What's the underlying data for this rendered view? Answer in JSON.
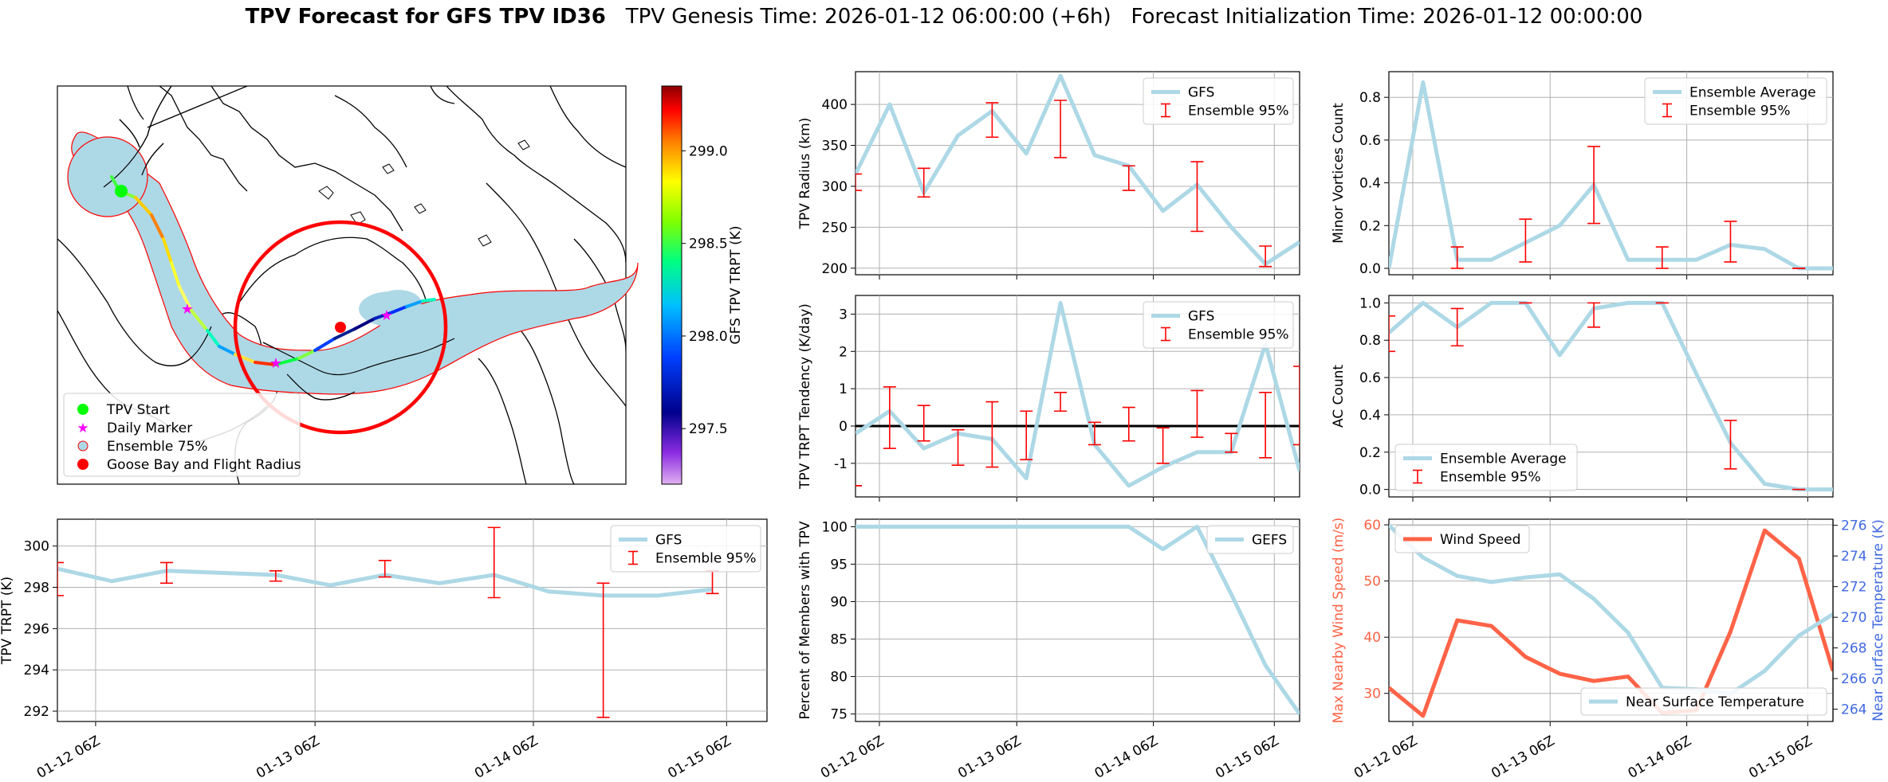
{
  "title": {
    "bold": "TPV Forecast for GFS TPV ID36",
    "genesis": "TPV Genesis Time: 2026-01-12 06:00:00 (+6h)",
    "init": "Forecast Initialization Time: 2026-01-12 00:00:00"
  },
  "colors": {
    "light_blue": "#add8e6",
    "red": "#ff0000",
    "tomato": "#ff6347",
    "royal_blue": "#4169e1",
    "green": "#00ff00",
    "magenta": "#ff00ff"
  },
  "time_ticks": [
    "01-12 06Z",
    "01-13 06Z",
    "01-14 06Z",
    "01-15 06Z"
  ],
  "map": {
    "legend": [
      "TPV Start",
      "Daily Marker",
      "Ensemble 75%",
      "Goose Bay and Flight Radius"
    ],
    "colorbar": {
      "label": "GFS TPV TRPT (K)",
      "ticks": [
        297.5,
        298.0,
        298.5,
        299.0
      ],
      "range": [
        297.2,
        299.35
      ]
    }
  },
  "chart_data": [
    {
      "id": "trpt",
      "type": "line",
      "ylabel": "TPV TRPT (K)",
      "ylim": [
        291.5,
        301.3
      ],
      "yticks": [
        292,
        294,
        296,
        298,
        300
      ],
      "x": [
        0,
        0.5,
        1,
        1.5,
        2,
        2.5,
        3,
        3.5,
        4,
        4.5,
        5,
        5.5,
        6
      ],
      "values": [
        298.9,
        298.3,
        298.8,
        298.7,
        298.6,
        298.1,
        298.6,
        298.2,
        298.6,
        297.8,
        297.6,
        297.6,
        297.9
      ],
      "series_name": "GFS",
      "errorbars": [
        {
          "x": 0,
          "lo": 297.6,
          "hi": 299.2
        },
        {
          "x": 1,
          "lo": 298.2,
          "hi": 299.2
        },
        {
          "x": 2,
          "lo": 298.3,
          "hi": 298.8
        },
        {
          "x": 3,
          "lo": 298.5,
          "hi": 299.3
        },
        {
          "x": 4,
          "lo": 297.5,
          "hi": 300.9
        },
        {
          "x": 5,
          "lo": 291.7,
          "hi": 298.2
        },
        {
          "x": 6,
          "lo": 297.7,
          "hi": 298.8
        }
      ],
      "legend": [
        "GFS",
        "Ensemble 95%"
      ]
    },
    {
      "id": "radius",
      "type": "line",
      "ylabel": "TPV Radius (km)",
      "ylim": [
        192,
        440
      ],
      "yticks": [
        200,
        250,
        300,
        350,
        400
      ],
      "x": [
        0,
        0.5,
        1,
        1.5,
        2,
        2.5,
        3,
        3.5,
        4,
        4.5,
        5,
        5.5,
        6
      ],
      "values": [
        315,
        400,
        292,
        362,
        392,
        340,
        435,
        338,
        325,
        270,
        302,
        250,
        205
      ],
      "extra": {
        "x": 6.5,
        "y": 232
      },
      "series_name": "GFS",
      "errorbars": [
        {
          "x": 0,
          "lo": 295,
          "hi": 315
        },
        {
          "x": 1,
          "lo": 287,
          "hi": 322
        },
        {
          "x": 2,
          "lo": 360,
          "hi": 402
        },
        {
          "x": 3,
          "lo": 335,
          "hi": 405
        },
        {
          "x": 4,
          "lo": 295,
          "hi": 325
        },
        {
          "x": 5,
          "lo": 245,
          "hi": 330
        },
        {
          "x": 6,
          "lo": 202,
          "hi": 227
        }
      ],
      "legend": [
        "GFS",
        "Ensemble 95%"
      ]
    },
    {
      "id": "tendency",
      "type": "line",
      "ylabel": "TPV TRPT Tendency (K/day)",
      "ylim": [
        -1.9,
        3.5
      ],
      "yticks": [
        -1,
        0,
        1,
        2,
        3
      ],
      "x": [
        0,
        0.5,
        1,
        1.5,
        2,
        2.5,
        3,
        3.5,
        4,
        4.5,
        5,
        5.5,
        6
      ],
      "values": [
        -0.2,
        0.4,
        -0.6,
        -0.2,
        -0.35,
        -1.4,
        3.3,
        -0.5,
        -1.6,
        -1.1,
        -0.7,
        -0.7,
        2.2
      ],
      "extra": {
        "x": 6.5,
        "y": -1.2
      },
      "series_name": "GFS",
      "errorbars": [
        {
          "x": 0,
          "lo": -1.6,
          "hi": -1.6
        },
        {
          "x": 0.5,
          "lo": -0.6,
          "hi": 1.05
        },
        {
          "x": 1,
          "lo": -0.4,
          "hi": 0.55
        },
        {
          "x": 1.5,
          "lo": -1.05,
          "hi": -0.1
        },
        {
          "x": 2,
          "lo": -1.1,
          "hi": 0.65
        },
        {
          "x": 2.5,
          "lo": -0.9,
          "hi": 0.4
        },
        {
          "x": 3,
          "lo": 0.4,
          "hi": 0.9
        },
        {
          "x": 3.5,
          "lo": -0.5,
          "hi": 0.1
        },
        {
          "x": 4,
          "lo": -0.4,
          "hi": 0.5
        },
        {
          "x": 4.5,
          "lo": -1.0,
          "hi": -0.05
        },
        {
          "x": 5,
          "lo": -0.3,
          "hi": 0.95
        },
        {
          "x": 5.5,
          "lo": -0.7,
          "hi": -0.2
        },
        {
          "x": 6,
          "lo": -0.85,
          "hi": 0.9
        },
        {
          "x": 6.5,
          "lo": -0.5,
          "hi": 1.6
        }
      ],
      "zero_line": true,
      "legend": [
        "GFS",
        "Ensemble 95%"
      ]
    },
    {
      "id": "members",
      "type": "line",
      "ylabel": "Percent of Members with TPV",
      "ylim": [
        74,
        101
      ],
      "yticks": [
        75,
        80,
        85,
        90,
        95,
        100
      ],
      "x": [
        0,
        0.5,
        1,
        1.5,
        2,
        2.5,
        3,
        3.5,
        4,
        4.5,
        5,
        5.5,
        6,
        6.5
      ],
      "values": [
        100,
        100,
        100,
        100,
        100,
        100,
        100,
        100,
        100,
        97,
        100,
        91,
        81.5,
        75
      ],
      "series_name": "GEFS",
      "legend": [
        "GEFS"
      ]
    },
    {
      "id": "minor",
      "type": "line",
      "ylabel": "Minor Vortices Count",
      "ylim": [
        -0.03,
        0.92
      ],
      "yticks": [
        0.0,
        0.2,
        0.4,
        0.6,
        0.8
      ],
      "x": [
        0,
        0.5,
        1,
        1.5,
        2,
        2.5,
        3,
        3.5,
        4,
        4.5,
        5,
        5.5,
        6,
        6.5
      ],
      "values": [
        0.0,
        0.87,
        0.04,
        0.04,
        0.12,
        0.2,
        0.39,
        0.04,
        0.04,
        0.04,
        0.11,
        0.09,
        0.0,
        0.0
      ],
      "series_name": "Ensemble Average",
      "errorbars": [
        {
          "x": 1,
          "lo": 0.0,
          "hi": 0.1
        },
        {
          "x": 2,
          "lo": 0.03,
          "hi": 0.23
        },
        {
          "x": 3,
          "lo": 0.21,
          "hi": 0.57
        },
        {
          "x": 4,
          "lo": 0.0,
          "hi": 0.1
        },
        {
          "x": 5,
          "lo": 0.03,
          "hi": 0.22
        },
        {
          "x": 6,
          "lo": 0.0,
          "hi": 0.0
        }
      ],
      "legend": [
        "Ensemble Average",
        "Ensemble 95%"
      ]
    },
    {
      "id": "ac",
      "type": "line",
      "ylabel": "AC Count",
      "ylim": [
        -0.04,
        1.04
      ],
      "yticks": [
        0.0,
        0.2,
        0.4,
        0.6,
        0.8,
        1.0
      ],
      "x": [
        0,
        0.5,
        1,
        1.5,
        2,
        2.5,
        3,
        3.5,
        4,
        4.5,
        5,
        5.5,
        6,
        6.5
      ],
      "values": [
        0.84,
        1.0,
        0.87,
        1.0,
        1.0,
        0.72,
        0.97,
        1.0,
        1.0,
        0.62,
        0.25,
        0.03,
        0.0,
        0.0
      ],
      "series_name": "Ensemble Average",
      "errorbars": [
        {
          "x": 0,
          "lo": 0.74,
          "hi": 0.93
        },
        {
          "x": 1,
          "lo": 0.77,
          "hi": 0.97
        },
        {
          "x": 2,
          "lo": 1.0,
          "hi": 1.0
        },
        {
          "x": 3,
          "lo": 0.87,
          "hi": 1.0
        },
        {
          "x": 4,
          "lo": 1.0,
          "hi": 1.0
        },
        {
          "x": 5,
          "lo": 0.11,
          "hi": 0.37
        },
        {
          "x": 6,
          "lo": 0.0,
          "hi": 0.0
        }
      ],
      "legend": [
        "Ensemble Average",
        "Ensemble 95%"
      ]
    },
    {
      "id": "wind",
      "type": "line",
      "ylabel": "Max Nearby Wind Speed (m/s)",
      "ylabel2": "Near Surface Temperature (K)",
      "ylim": [
        25,
        61
      ],
      "yticks": [
        30,
        40,
        50,
        60
      ],
      "ylim2": [
        263.2,
        276.4
      ],
      "yticks2": [
        264,
        266,
        268,
        270,
        272,
        274,
        276
      ],
      "x": [
        0,
        0.5,
        1,
        1.5,
        2,
        2.5,
        3,
        3.5,
        4,
        4.5,
        5,
        5.5,
        6,
        6.5
      ],
      "series": [
        {
          "name": "Wind Speed",
          "axis": "left",
          "values": [
            31,
            26,
            43,
            42,
            36.5,
            33.5,
            32.2,
            33,
            26.5,
            27,
            41,
            59,
            54,
            34
          ]
        },
        {
          "name": "Near Surface Temperature",
          "axis": "right",
          "values": [
            276,
            273.9,
            272.7,
            272.3,
            272.6,
            272.8,
            271.2,
            269.0,
            265.4,
            265.3,
            265.0,
            266.5,
            268.8,
            270.2
          ]
        }
      ],
      "legend": [
        "Wind Speed",
        "Near Surface Temperature"
      ]
    }
  ]
}
